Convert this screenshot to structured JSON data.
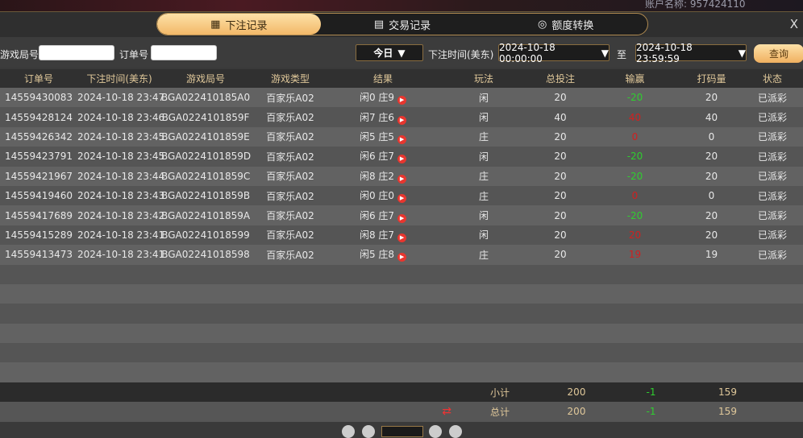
{
  "background": {
    "account_text": "账户名称: 957424110"
  },
  "tabs": [
    {
      "label": "下注记录",
      "icon": "calendar-icon",
      "active": true
    },
    {
      "label": "交易记录",
      "icon": "document-icon",
      "active": false
    },
    {
      "label": "额度转换",
      "icon": "coins-icon",
      "active": false
    }
  ],
  "close_label": "X",
  "filters": {
    "round_label": "游戏局号",
    "round_value": "",
    "order_label": "订单号",
    "order_value": "",
    "period": "今日",
    "time_label": "下注时间(美东)",
    "start": "2024-10-18 00:00:00",
    "to": "至",
    "end": "2024-10-18 23:59:59",
    "query": "查询"
  },
  "columns": [
    "订单号",
    "下注时间(美东)",
    "游戏局号",
    "游戏类型",
    "结果",
    "玩法",
    "总投注",
    "输赢",
    "打码量",
    "状态"
  ],
  "rows": [
    [
      "14559430083",
      "2024-10-18 23:47",
      "BGA022410185A0",
      "百家乐A02",
      "闲0 庄9",
      "闲",
      "20",
      "-20",
      "20",
      "已派彩"
    ],
    [
      "14559428124",
      "2024-10-18 23:46",
      "BGA0224101859F",
      "百家乐A02",
      "闲7 庄6",
      "闲",
      "40",
      "40",
      "40",
      "已派彩"
    ],
    [
      "14559426342",
      "2024-10-18 23:45",
      "BGA0224101859E",
      "百家乐A02",
      "闲5 庄5",
      "庄",
      "20",
      "0",
      "0",
      "已派彩"
    ],
    [
      "14559423791",
      "2024-10-18 23:45",
      "BGA0224101859D",
      "百家乐A02",
      "闲6 庄7",
      "闲",
      "20",
      "-20",
      "20",
      "已派彩"
    ],
    [
      "14559421967",
      "2024-10-18 23:44",
      "BGA0224101859C",
      "百家乐A02",
      "闲8 庄2",
      "庄",
      "20",
      "-20",
      "20",
      "已派彩"
    ],
    [
      "14559419460",
      "2024-10-18 23:43",
      "BGA0224101859B",
      "百家乐A02",
      "闲0 庄0",
      "庄",
      "20",
      "0",
      "0",
      "已派彩"
    ],
    [
      "14559417689",
      "2024-10-18 23:42",
      "BGA0224101859A",
      "百家乐A02",
      "闲6 庄7",
      "闲",
      "20",
      "-20",
      "20",
      "已派彩"
    ],
    [
      "14559415289",
      "2024-10-18 23:41",
      "BGA02241018599",
      "百家乐A02",
      "闲8 庄7",
      "闲",
      "20",
      "20",
      "20",
      "已派彩"
    ],
    [
      "14559413473",
      "2024-10-18 23:41",
      "BGA02241018598",
      "百家乐A02",
      "闲5 庄8",
      "庄",
      "20",
      "19",
      "19",
      "已派彩"
    ]
  ],
  "subtotal": {
    "label": "小计",
    "bet": "200",
    "winloss": "-1",
    "valid": "159"
  },
  "total": {
    "label": "总计",
    "bet": "200",
    "winloss": "-1",
    "valid": "159"
  },
  "colors": {
    "accent": "#f2b868",
    "win": "#d02020",
    "loss": "#2fce2f"
  }
}
